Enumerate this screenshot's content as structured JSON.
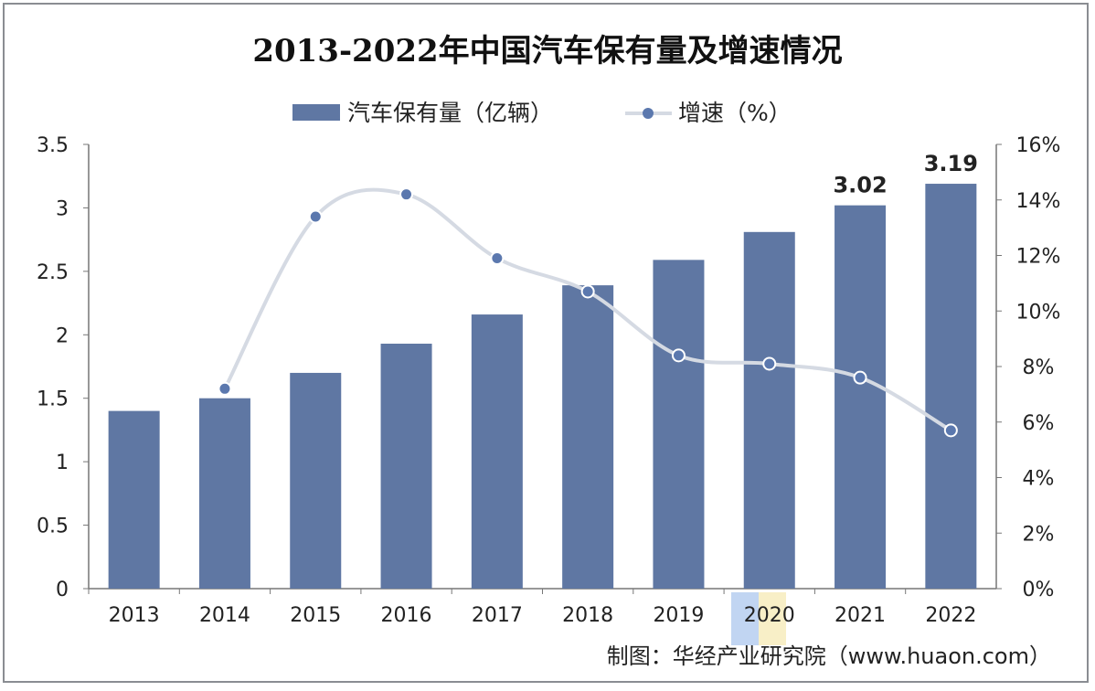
{
  "chart_data": {
    "type": "bar+line",
    "title": "2013-2022年中国汽车保有量及增速情况",
    "categories": [
      "2013",
      "2014",
      "2015",
      "2016",
      "2017",
      "2018",
      "2019",
      "2020",
      "2021",
      "2022"
    ],
    "series": [
      {
        "name": "汽车保有量（亿辆）",
        "type": "bar",
        "axis": "left",
        "color": "#5f77a3",
        "values": [
          1.4,
          1.5,
          1.7,
          1.93,
          2.16,
          2.39,
          2.59,
          2.81,
          3.02,
          3.19
        ]
      },
      {
        "name": "增速（%）",
        "type": "line",
        "axis": "right",
        "color": "#d5dae3",
        "marker_color": "#5b78ae",
        "values": [
          null,
          7.2,
          13.4,
          14.2,
          11.9,
          10.7,
          8.4,
          8.1,
          7.6,
          5.7
        ]
      }
    ],
    "data_labels": {
      "8": "3.02",
      "9": "3.19"
    },
    "y_left": {
      "range": [
        0,
        3.5
      ],
      "ticks": [
        "0",
        "0.5",
        "1",
        "1.5",
        "2",
        "2.5",
        "3",
        "3.5"
      ]
    },
    "y_right": {
      "range": [
        0,
        16
      ],
      "ticks": [
        "0%",
        "2%",
        "4%",
        "6%",
        "8%",
        "10%",
        "12%",
        "14%",
        "16%"
      ]
    },
    "grid": false,
    "legend": "top-center",
    "source": "制图：华经产业研究院（www.huaon.com）",
    "watermark": "华经产业研究院 www.huaon.com"
  }
}
